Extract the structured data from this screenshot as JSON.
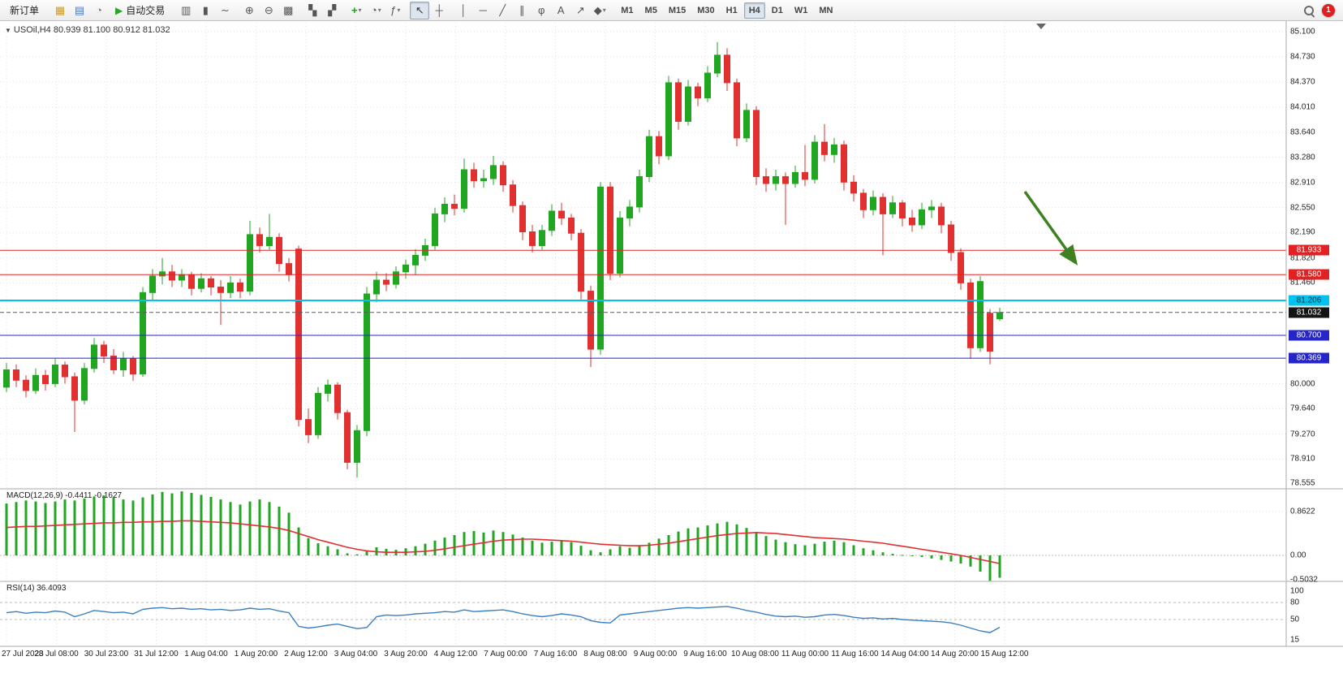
{
  "toolbar": {
    "new_order": "新订单",
    "auto_trading": "自动交易",
    "items": [
      {
        "type": "button",
        "name": "new-order-button",
        "label": "新订单"
      },
      {
        "type": "sep"
      },
      {
        "type": "icon",
        "name": "new-chart-icon",
        "glyph": "▦",
        "color": "#c89b30"
      },
      {
        "type": "icon",
        "name": "profiles-icon",
        "glyph": "▤",
        "color": "#4a77c0"
      },
      {
        "type": "icon",
        "name": "strategy-tester-icon",
        "glyph": "◔",
        "color": "#7a7a7a"
      },
      {
        "type": "button",
        "name": "auto-trading-button",
        "label": "自动交易",
        "glyph": "▶",
        "glyph_color": "#27a827"
      },
      {
        "type": "sep"
      },
      {
        "type": "icon",
        "name": "bar-chart-icon",
        "glyph": "▥",
        "color": "#555555"
      },
      {
        "type": "icon",
        "name": "candlestick-chart-icon",
        "glyph": "▮",
        "color": "#555555"
      },
      {
        "type": "icon",
        "name": "line-chart-icon",
        "glyph": "∼",
        "color": "#555555"
      },
      {
        "type": "sep"
      },
      {
        "type": "icon",
        "name": "zoom-in-icon",
        "glyph": "⊕",
        "color": "#555555"
      },
      {
        "type": "icon",
        "name": "zoom-out-icon",
        "glyph": "⊖",
        "color": "#555555"
      },
      {
        "type": "icon",
        "name": "grid-icon",
        "glyph": "▩",
        "color": "#555555"
      },
      {
        "type": "sep"
      },
      {
        "type": "icon",
        "name": "tile-windows-icon",
        "glyph": "▚",
        "color": "#555555"
      },
      {
        "type": "icon",
        "name": "cascade-windows-icon",
        "glyph": "▞",
        "color": "#555555"
      },
      {
        "type": "sep"
      },
      {
        "type": "icon",
        "name": "new-chart-window-icon",
        "glyph": "+",
        "color": "#1c9c1c",
        "dropdown": true
      },
      {
        "type": "icon",
        "name": "period-selector-icon",
        "glyph": "◔",
        "color": "#555555",
        "dropdown": true
      },
      {
        "type": "icon",
        "name": "indicators-icon",
        "glyph": "ƒ",
        "color": "#555555",
        "dropdown": true
      },
      {
        "type": "sep"
      },
      {
        "type": "icon",
        "name": "cursor-icon",
        "glyph": "↖",
        "color": "#333333",
        "active": true
      },
      {
        "type": "icon",
        "name": "crosshair-icon",
        "glyph": "┼",
        "color": "#555555"
      },
      {
        "type": "sep"
      },
      {
        "type": "icon",
        "name": "vertical-line-icon",
        "glyph": "│",
        "color": "#555555"
      },
      {
        "type": "icon",
        "name": "horizontal-line-icon",
        "glyph": "─",
        "color": "#555555"
      },
      {
        "type": "icon",
        "name": "trendline-icon",
        "glyph": "╱",
        "color": "#555555"
      },
      {
        "type": "icon",
        "name": "channel-icon",
        "glyph": "∥",
        "color": "#555555"
      },
      {
        "type": "icon",
        "name": "fibonacci-icon",
        "glyph": "φ",
        "color": "#555555"
      },
      {
        "type": "icon",
        "name": "text-label-icon",
        "glyph": "A",
        "color": "#555555"
      },
      {
        "type": "icon",
        "name": "arrows-icon",
        "glyph": "↗",
        "color": "#555555"
      },
      {
        "type": "icon",
        "name": "shapes-icon",
        "glyph": "◆",
        "color": "#555555",
        "dropdown": true
      },
      {
        "type": "sep"
      }
    ],
    "timeframes": [
      "M1",
      "M5",
      "M15",
      "M30",
      "H1",
      "H4",
      "D1",
      "W1",
      "MN"
    ],
    "active_timeframe": "H4",
    "notification_badge": "1"
  },
  "symbol_bar": {
    "text": "USOil,H4 80.939 81.100 80.912 81.032"
  },
  "price_axis": {
    "max": 85.1,
    "min": 78.555,
    "grid_step": 0.3643,
    "ticks": [
      "85.100",
      "84.730",
      "84.370",
      "84.010",
      "83.640",
      "83.280",
      "82.910",
      "82.550",
      "82.190",
      "81.820",
      "81.460",
      "80.000",
      "79.640",
      "79.270",
      "78.910",
      "78.555"
    ]
  },
  "levels": [
    {
      "price": 81.933,
      "label": "81.933",
      "color": "#e22222",
      "label_bg": "#e22222",
      "label_fg": "#ffffff",
      "style": "solid",
      "width": 1
    },
    {
      "price": 81.58,
      "label": "81.580",
      "color": "#e22222",
      "label_bg": "#e22222",
      "label_fg": "#ffffff",
      "style": "solid",
      "width": 1
    },
    {
      "price": 81.206,
      "label": "81.206",
      "color": "#00c2f0",
      "label_bg": "#00c2f0",
      "label_fg": "#00323f",
      "style": "solid",
      "width": 2
    },
    {
      "price": 81.032,
      "label": "81.032",
      "color": "#5a5a5a",
      "label_bg": "#141414",
      "label_fg": "#ffffff",
      "style": "dash",
      "width": 1
    },
    {
      "price": 80.7,
      "label": "80.700",
      "color": "#2626c8",
      "label_bg": "#2626c8",
      "label_fg": "#ffffff",
      "style": "solid",
      "width": 1
    },
    {
      "price": 80.369,
      "label": "80.369",
      "color": "#2626c8",
      "label_bg": "#2626c8",
      "label_fg": "#ffffff",
      "style": "solid",
      "width": 1
    }
  ],
  "time_axis": {
    "labels": [
      "27 Jul 2023",
      "28 Jul 08:00",
      "30 Jul 23:00",
      "31 Jul 12:00",
      "1 Aug 04:00",
      "1 Aug 20:00",
      "2 Aug 12:00",
      "3 Aug 04:00",
      "3 Aug 20:00",
      "4 Aug 12:00",
      "7 Aug 00:00",
      "7 Aug 16:00",
      "8 Aug 08:00",
      "9 Aug 00:00",
      "9 Aug 16:00",
      "10 Aug 08:00",
      "11 Aug 00:00",
      "11 Aug 16:00",
      "14 Aug 04:00",
      "14 Aug 20:00",
      "15 Aug 12:00"
    ]
  },
  "annotation_arrow": {
    "color": "#3f8020"
  },
  "chart_data": {
    "type": "candlestick",
    "symbol": "USOil",
    "timeframe": "H4",
    "bull_color": "#21a621",
    "bear_color": "#e03030",
    "ohlc": [
      [
        79.95,
        80.3,
        79.88,
        80.2
      ],
      [
        80.2,
        80.28,
        79.95,
        80.05
      ],
      [
        80.05,
        80.12,
        79.8,
        79.9
      ],
      [
        79.9,
        80.22,
        79.85,
        80.12
      ],
      [
        80.12,
        80.2,
        79.9,
        80.0
      ],
      [
        80.0,
        80.36,
        79.95,
        80.27
      ],
      [
        80.27,
        80.32,
        80.0,
        80.1
      ],
      [
        80.1,
        80.16,
        79.3,
        79.76
      ],
      [
        79.76,
        80.3,
        79.7,
        80.22
      ],
      [
        80.22,
        80.66,
        80.16,
        80.56
      ],
      [
        80.56,
        80.62,
        80.3,
        80.4
      ],
      [
        80.4,
        80.5,
        80.14,
        80.2
      ],
      [
        80.2,
        80.46,
        80.1,
        80.36
      ],
      [
        80.36,
        80.4,
        80.04,
        80.14
      ],
      [
        80.14,
        81.4,
        80.1,
        81.32
      ],
      [
        81.32,
        81.66,
        81.2,
        81.56
      ],
      [
        81.56,
        81.82,
        81.44,
        81.62
      ],
      [
        81.62,
        81.72,
        81.4,
        81.5
      ],
      [
        81.5,
        81.66,
        81.4,
        81.58
      ],
      [
        81.58,
        81.62,
        81.28,
        81.38
      ],
      [
        81.38,
        81.6,
        81.32,
        81.52
      ],
      [
        81.52,
        81.56,
        81.28,
        81.4
      ],
      [
        81.4,
        81.5,
        80.85,
        81.32
      ],
      [
        81.32,
        81.56,
        81.24,
        81.46
      ],
      [
        81.46,
        81.52,
        81.24,
        81.34
      ],
      [
        81.34,
        82.36,
        81.28,
        82.16
      ],
      [
        82.16,
        82.26,
        81.9,
        82.0
      ],
      [
        82.0,
        82.46,
        81.94,
        82.12
      ],
      [
        82.12,
        82.18,
        81.62,
        81.74
      ],
      [
        81.74,
        81.82,
        81.48,
        81.58
      ],
      [
        81.95,
        82.0,
        79.38,
        79.48
      ],
      [
        79.48,
        79.64,
        79.14,
        79.26
      ],
      [
        79.26,
        79.95,
        79.2,
        79.86
      ],
      [
        79.86,
        80.06,
        79.74,
        79.98
      ],
      [
        79.98,
        80.02,
        79.48,
        79.58
      ],
      [
        79.58,
        79.62,
        78.76,
        78.86
      ],
      [
        78.86,
        79.4,
        78.64,
        79.32
      ],
      [
        79.32,
        81.4,
        79.24,
        81.3
      ],
      [
        81.3,
        81.62,
        81.18,
        81.5
      ],
      [
        81.5,
        81.6,
        81.34,
        81.44
      ],
      [
        81.44,
        81.7,
        81.38,
        81.62
      ],
      [
        81.62,
        81.8,
        81.52,
        81.72
      ],
      [
        81.72,
        81.95,
        81.58,
        81.86
      ],
      [
        81.86,
        82.1,
        81.78,
        82.0
      ],
      [
        82.0,
        82.55,
        81.94,
        82.46
      ],
      [
        82.46,
        82.7,
        82.34,
        82.6
      ],
      [
        82.6,
        82.74,
        82.44,
        82.54
      ],
      [
        82.54,
        83.26,
        82.48,
        83.1
      ],
      [
        83.1,
        83.2,
        82.84,
        82.94
      ],
      [
        82.94,
        83.1,
        82.84,
        82.97
      ],
      [
        82.97,
        83.3,
        82.88,
        83.16
      ],
      [
        83.16,
        83.22,
        82.78,
        82.88
      ],
      [
        82.88,
        82.95,
        82.48,
        82.58
      ],
      [
        82.58,
        82.64,
        82.08,
        82.2
      ],
      [
        82.2,
        82.3,
        81.9,
        82.0
      ],
      [
        82.0,
        82.3,
        81.94,
        82.22
      ],
      [
        82.22,
        82.6,
        82.14,
        82.5
      ],
      [
        82.5,
        82.62,
        82.3,
        82.4
      ],
      [
        82.4,
        82.46,
        82.08,
        82.18
      ],
      [
        82.18,
        82.24,
        81.22,
        81.34
      ],
      [
        81.34,
        81.42,
        80.24,
        80.5
      ],
      [
        80.5,
        82.92,
        80.42,
        82.85
      ],
      [
        82.85,
        82.92,
        81.5,
        81.6
      ],
      [
        81.6,
        82.5,
        81.54,
        82.4
      ],
      [
        82.4,
        82.66,
        82.28,
        82.56
      ],
      [
        82.56,
        83.1,
        82.48,
        83.0
      ],
      [
        83.0,
        83.68,
        82.92,
        83.58
      ],
      [
        83.58,
        83.66,
        83.18,
        83.3
      ],
      [
        83.3,
        84.46,
        83.24,
        84.36
      ],
      [
        84.36,
        84.42,
        83.68,
        83.8
      ],
      [
        83.8,
        84.4,
        83.74,
        84.3
      ],
      [
        84.3,
        84.36,
        84.02,
        84.14
      ],
      [
        84.14,
        84.6,
        84.08,
        84.5
      ],
      [
        84.5,
        84.95,
        84.44,
        84.76
      ],
      [
        84.76,
        84.86,
        84.24,
        84.36
      ],
      [
        84.36,
        84.42,
        83.44,
        83.56
      ],
      [
        83.56,
        84.06,
        83.5,
        83.96
      ],
      [
        83.96,
        84.02,
        82.88,
        83.0
      ],
      [
        83.0,
        83.12,
        82.78,
        82.9
      ],
      [
        82.9,
        83.1,
        82.8,
        83.0
      ],
      [
        83.0,
        83.06,
        82.3,
        82.9
      ],
      [
        82.9,
        83.16,
        82.84,
        83.06
      ],
      [
        83.06,
        83.46,
        82.86,
        82.96
      ],
      [
        82.96,
        83.6,
        82.9,
        83.5
      ],
      [
        83.5,
        83.76,
        83.22,
        83.32
      ],
      [
        83.32,
        83.56,
        83.2,
        83.46
      ],
      [
        83.46,
        83.52,
        82.8,
        82.92
      ],
      [
        82.92,
        83.02,
        82.64,
        82.76
      ],
      [
        82.76,
        82.82,
        82.4,
        82.52
      ],
      [
        82.52,
        82.8,
        82.44,
        82.7
      ],
      [
        82.7,
        82.76,
        81.86,
        82.46
      ],
      [
        82.46,
        82.72,
        82.4,
        82.62
      ],
      [
        82.62,
        82.66,
        82.28,
        82.4
      ],
      [
        82.4,
        82.52,
        82.2,
        82.3
      ],
      [
        82.3,
        82.62,
        82.24,
        82.52
      ],
      [
        82.52,
        82.66,
        82.4,
        82.56
      ],
      [
        82.56,
        82.62,
        82.18,
        82.3
      ],
      [
        82.3,
        82.36,
        81.78,
        81.9
      ],
      [
        81.9,
        81.96,
        81.36,
        81.46
      ],
      [
        81.46,
        81.52,
        80.36,
        80.52
      ],
      [
        80.52,
        81.56,
        80.46,
        81.48
      ],
      [
        81.02,
        81.08,
        80.28,
        80.47
      ],
      [
        80.94,
        81.1,
        80.91,
        81.03
      ]
    ],
    "macd": {
      "label": "MACD(12,26,9) -0.4411 -0.1627",
      "scale_labels": [
        "0.8622",
        "0.00",
        "-0.5032"
      ],
      "histogram_color": "#21a621",
      "signal_color": "#e03030",
      "histogram": [
        1.02,
        1.05,
        1.08,
        1.06,
        1.03,
        1.06,
        1.1,
        1.08,
        1.12,
        1.16,
        1.18,
        1.14,
        1.1,
        1.08,
        1.14,
        1.2,
        1.25,
        1.22,
        1.26,
        1.23,
        1.19,
        1.15,
        1.1,
        1.05,
        1.0,
        1.06,
        1.1,
        1.05,
        0.96,
        0.84,
        0.55,
        0.34,
        0.24,
        0.18,
        0.12,
        0.04,
        0.02,
        0.1,
        0.16,
        0.13,
        0.11,
        0.14,
        0.18,
        0.23,
        0.29,
        0.35,
        0.4,
        0.46,
        0.48,
        0.45,
        0.49,
        0.46,
        0.41,
        0.35,
        0.29,
        0.25,
        0.27,
        0.3,
        0.26,
        0.19,
        0.1,
        0.06,
        0.12,
        0.18,
        0.15,
        0.19,
        0.25,
        0.33,
        0.4,
        0.47,
        0.53,
        0.55,
        0.59,
        0.63,
        0.66,
        0.61,
        0.54,
        0.46,
        0.38,
        0.31,
        0.26,
        0.22,
        0.2,
        0.23,
        0.27,
        0.29,
        0.26,
        0.2,
        0.14,
        0.1,
        0.06,
        0.03,
        0.01,
        -0.01,
        -0.03,
        -0.06,
        -0.09,
        -0.12,
        -0.16,
        -0.22,
        -0.32,
        -0.5,
        -0.44
      ],
      "signal": [
        0.55,
        0.56,
        0.57,
        0.57,
        0.58,
        0.59,
        0.6,
        0.61,
        0.62,
        0.63,
        0.64,
        0.64,
        0.65,
        0.65,
        0.66,
        0.66,
        0.67,
        0.67,
        0.68,
        0.68,
        0.67,
        0.66,
        0.65,
        0.64,
        0.62,
        0.6,
        0.58,
        0.56,
        0.53,
        0.49,
        0.43,
        0.37,
        0.31,
        0.26,
        0.21,
        0.16,
        0.12,
        0.09,
        0.07,
        0.06,
        0.06,
        0.06,
        0.07,
        0.08,
        0.1,
        0.13,
        0.16,
        0.19,
        0.22,
        0.25,
        0.28,
        0.3,
        0.31,
        0.32,
        0.32,
        0.31,
        0.3,
        0.29,
        0.28,
        0.26,
        0.24,
        0.22,
        0.21,
        0.2,
        0.19,
        0.19,
        0.2,
        0.22,
        0.24,
        0.27,
        0.3,
        0.33,
        0.36,
        0.39,
        0.41,
        0.43,
        0.44,
        0.45,
        0.44,
        0.43,
        0.41,
        0.39,
        0.37,
        0.35,
        0.34,
        0.33,
        0.32,
        0.3,
        0.28,
        0.26,
        0.24,
        0.21,
        0.18,
        0.15,
        0.12,
        0.09,
        0.06,
        0.03,
        0.0,
        -0.04,
        -0.08,
        -0.12,
        -0.16
      ]
    },
    "rsi": {
      "label": "RSI(14) 36.4093",
      "scale_labels": [
        "100",
        "80",
        "50",
        "15"
      ],
      "level_lines": [
        80,
        50
      ],
      "line_color": "#3a7fc1",
      "values": [
        62,
        64,
        61,
        63,
        62,
        65,
        63,
        55,
        60,
        66,
        64,
        62,
        63,
        60,
        68,
        70,
        71,
        69,
        70,
        68,
        69,
        67,
        68,
        66,
        67,
        70,
        68,
        69,
        65,
        62,
        38,
        35,
        37,
        40,
        42,
        38,
        34,
        36,
        55,
        58,
        57,
        58,
        60,
        61,
        62,
        64,
        63,
        67,
        64,
        65,
        66,
        67,
        64,
        60,
        57,
        55,
        57,
        60,
        58,
        55,
        48,
        45,
        44,
        58,
        60,
        62,
        64,
        66,
        68,
        70,
        71,
        70,
        71,
        72,
        73,
        70,
        66,
        63,
        59,
        56,
        55,
        56,
        54,
        55,
        58,
        59,
        57,
        54,
        52,
        53,
        51,
        52,
        50,
        49,
        48,
        47,
        46,
        44,
        40,
        35,
        30,
        27,
        36.4
      ]
    }
  }
}
